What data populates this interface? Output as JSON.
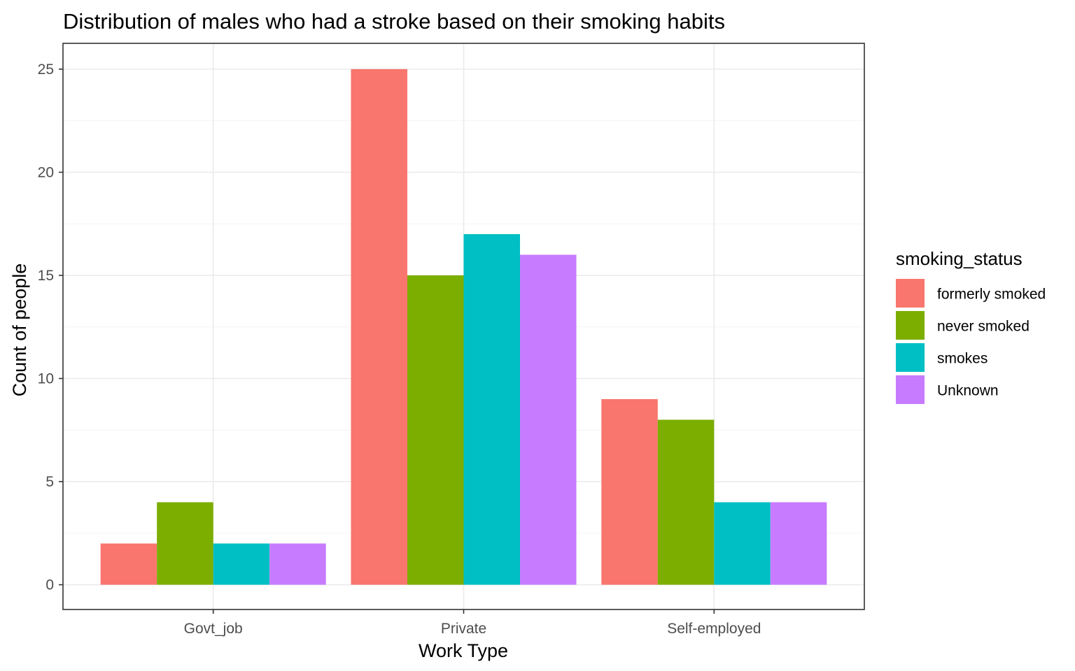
{
  "chart_data": {
    "type": "bar",
    "title": "Distribution of males who had a stroke based on their smoking habits",
    "xlabel": "Work Type",
    "ylabel": "Count of people",
    "categories": [
      "Govt_job",
      "Private",
      "Self-employed"
    ],
    "series": [
      {
        "name": "formerly smoked",
        "color": "#F8766D",
        "values": [
          2,
          25,
          9
        ]
      },
      {
        "name": "never smoked",
        "color": "#7CAE00",
        "values": [
          4,
          15,
          8
        ]
      },
      {
        "name": "smokes",
        "color": "#00BFC4",
        "values": [
          2,
          17,
          4
        ]
      },
      {
        "name": "Unknown",
        "color": "#C77CFF",
        "values": [
          2,
          16,
          4
        ]
      }
    ],
    "ylim": [
      -1.2,
      26.25
    ],
    "y_ticks": [
      0,
      5,
      10,
      15,
      20,
      25
    ],
    "grid": true,
    "legend": {
      "title": "smoking_status",
      "position": "right"
    }
  }
}
